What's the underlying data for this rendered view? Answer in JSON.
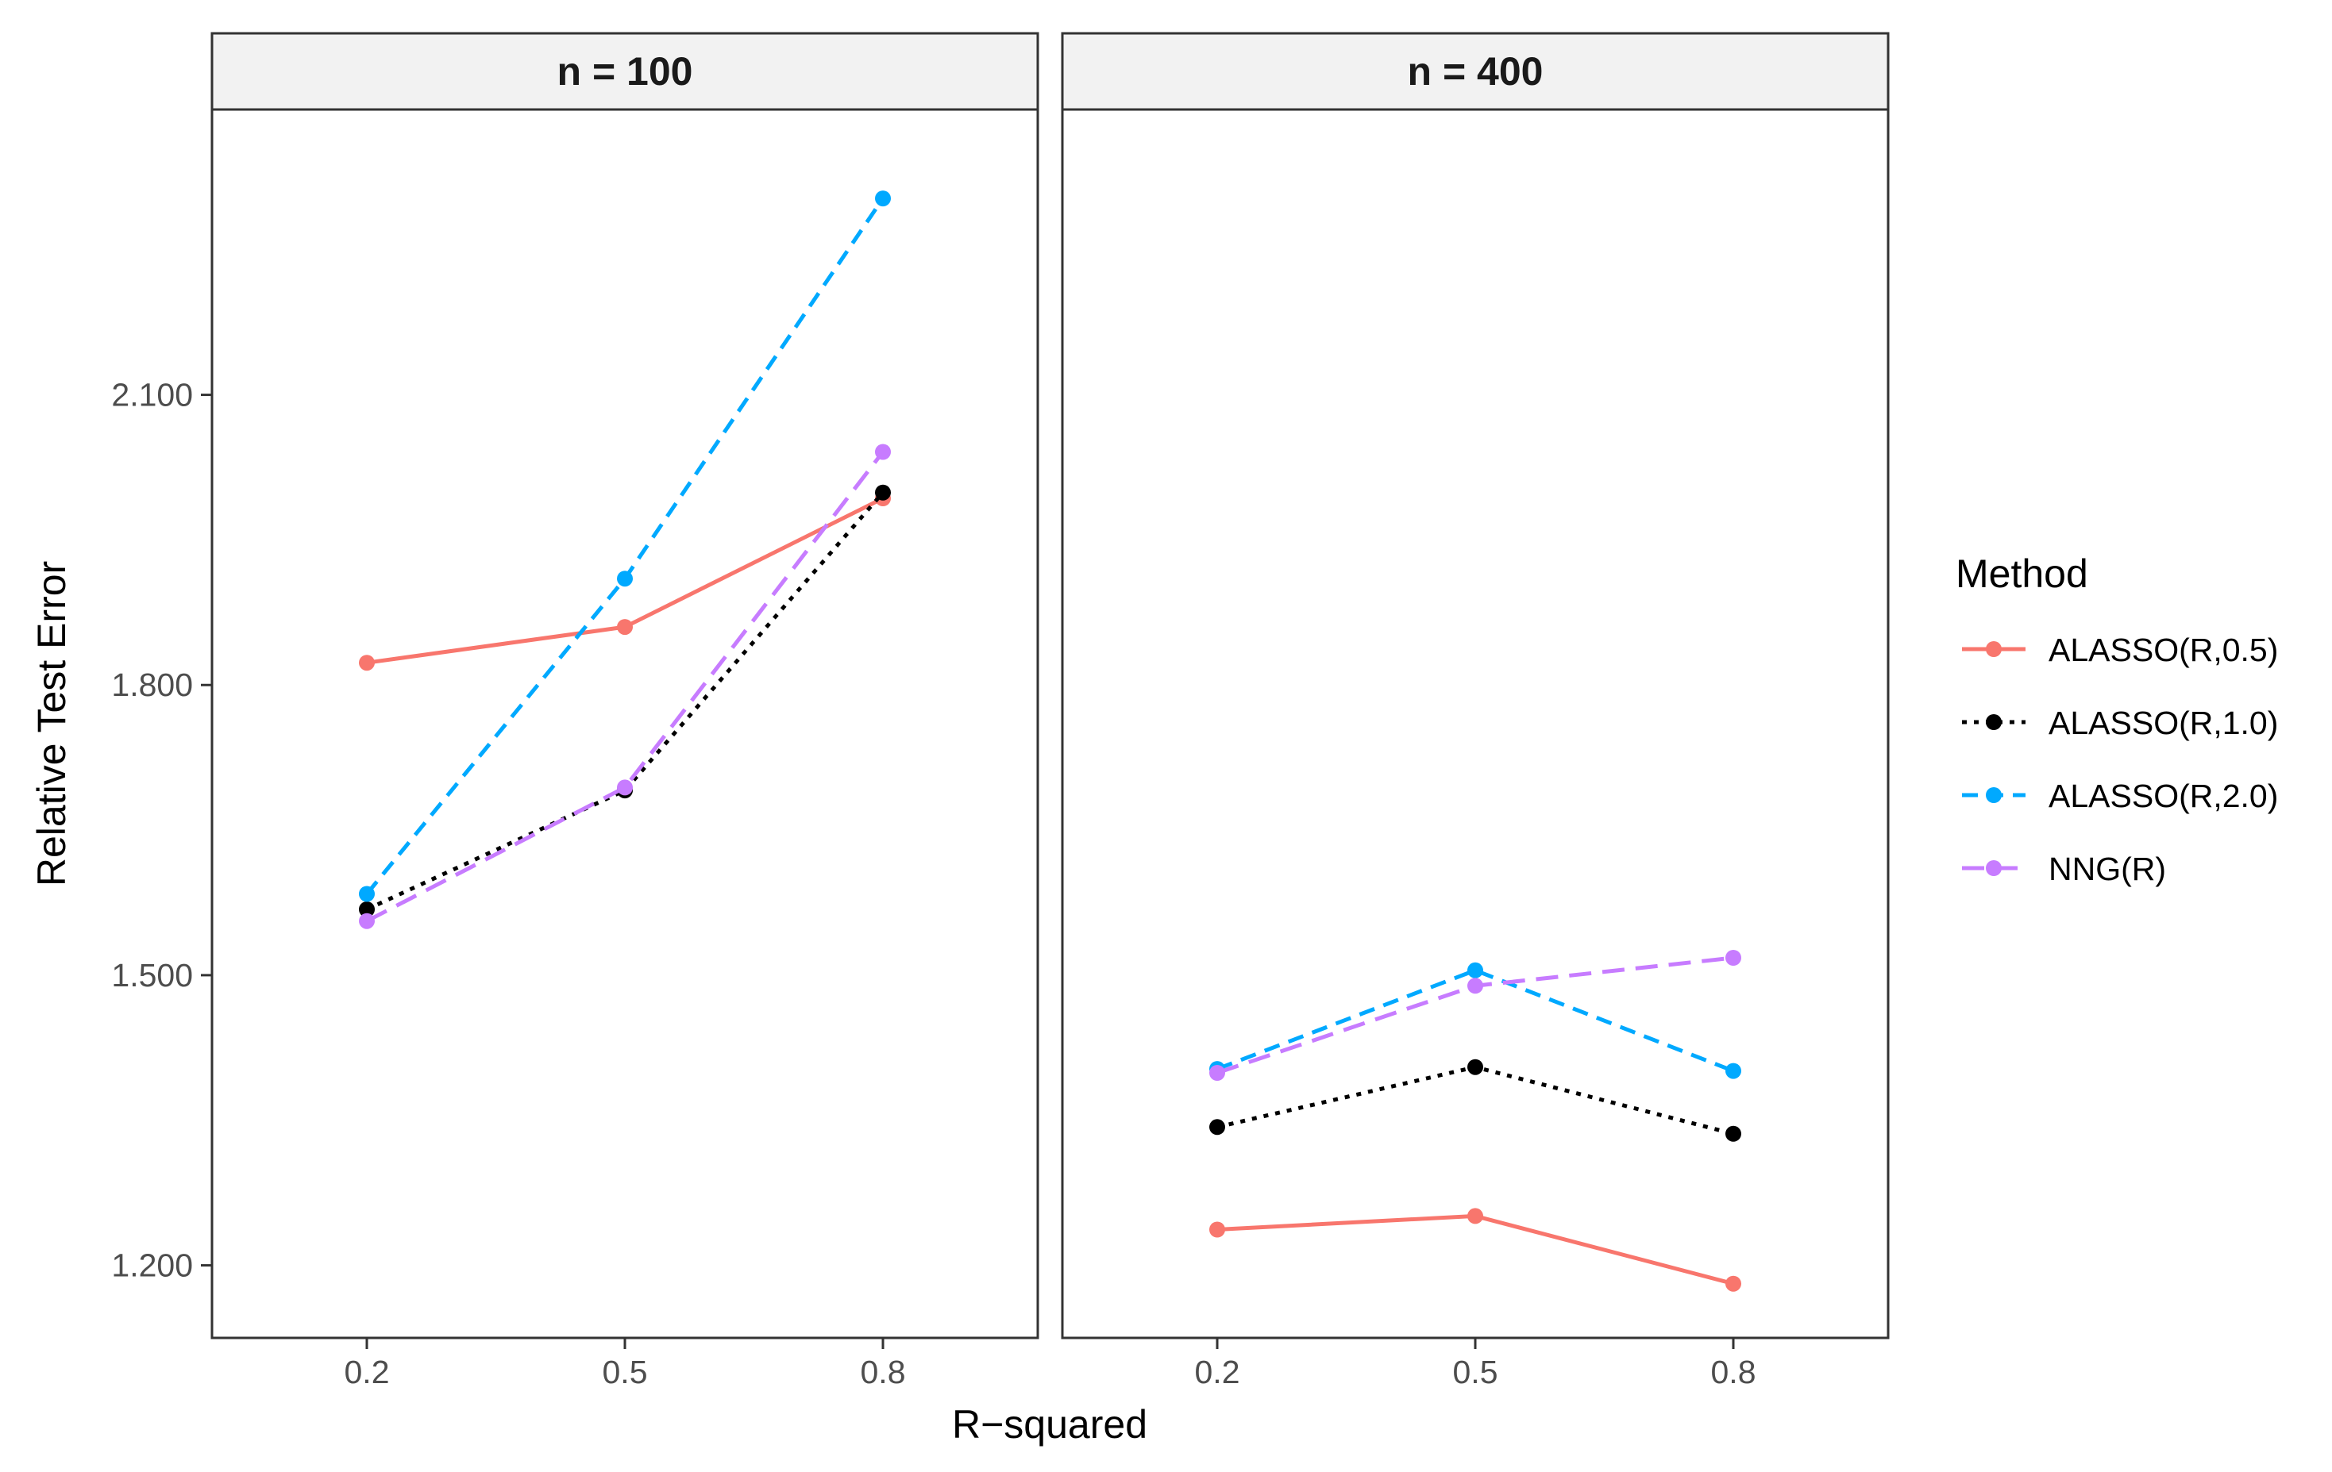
{
  "chart_data": {
    "type": "line",
    "facets": [
      {
        "label": "n = 100"
      },
      {
        "label": "n = 400"
      }
    ],
    "categories": [
      "0.2",
      "0.5",
      "0.8"
    ],
    "xlabel": "R−squared",
    "ylabel": "Relative Test Error",
    "yticks": [
      1.2,
      1.5,
      1.8,
      2.1
    ],
    "ytick_labels": [
      "1.200",
      "1.500",
      "1.800",
      "2.100"
    ],
    "ylim": [
      1.125,
      2.395
    ],
    "legend_title": "Method",
    "series": [
      {
        "name": "ALASSO(R,0.5)",
        "color": "#F8766D",
        "dash": "solid",
        "values_by_facet": [
          [
            1.823,
            1.86,
            1.993
          ],
          [
            1.237,
            1.251,
            1.181
          ]
        ]
      },
      {
        "name": "ALASSO(R,1.0)",
        "color": "#000000",
        "dash": "dotted",
        "values_by_facet": [
          [
            1.568,
            1.691,
            1.999
          ],
          [
            1.343,
            1.405,
            1.336
          ]
        ]
      },
      {
        "name": "ALASSO(R,2.0)",
        "color": "#00A9FF",
        "dash": "dashed",
        "values_by_facet": [
          [
            1.584,
            1.91,
            2.303
          ],
          [
            1.403,
            1.505,
            1.401
          ]
        ]
      },
      {
        "name": "NNG(R)",
        "color": "#C77CFF",
        "dash": "longdash",
        "values_by_facet": [
          [
            1.556,
            1.694,
            2.041
          ],
          [
            1.399,
            1.489,
            1.518
          ]
        ]
      }
    ]
  }
}
